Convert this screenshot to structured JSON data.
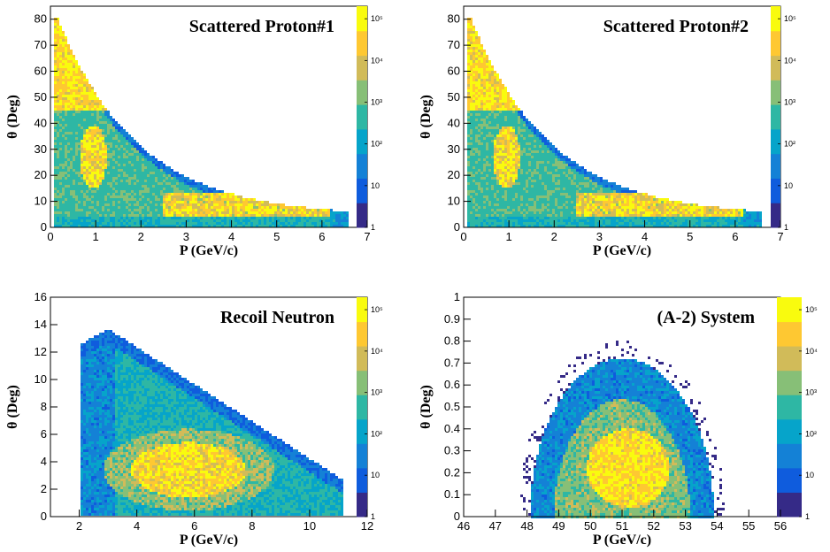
{
  "colorbar_colors": [
    "#352a87",
    "#0f5cdd",
    "#1481d6",
    "#06a4ca",
    "#2eb7a4",
    "#87bf77",
    "#d1bb59",
    "#fec832",
    "#f9fb0e"
  ],
  "chart_data": [
    {
      "type": "heatmap",
      "title": "Scattered Proton#1",
      "xlabel": "P (GeV/c)",
      "ylabel": "θ (Deg)",
      "xlim": [
        0,
        7
      ],
      "ylim": [
        0,
        85
      ],
      "xticks": [
        "0",
        "1",
        "2",
        "3",
        "4",
        "5",
        "6",
        "7"
      ],
      "yticks": [
        "0",
        "10",
        "20",
        "30",
        "40",
        "50",
        "60",
        "70",
        "80"
      ],
      "zscale": "log",
      "zlim": [
        1,
        200000
      ],
      "zticks": [
        {
          "label": "1",
          "exp": 0
        },
        {
          "label": "10",
          "exp": 1
        },
        {
          "label": "10²",
          "exp": 2
        },
        {
          "label": "10³",
          "exp": 3
        },
        {
          "label": "10⁴",
          "exp": 4
        },
        {
          "label": "10⁵",
          "exp": 5
        }
      ],
      "shape": "proton"
    },
    {
      "type": "heatmap",
      "title": "Scattered Proton#2",
      "xlabel": "P (GeV/c)",
      "ylabel": "θ (Deg)",
      "xlim": [
        0,
        7
      ],
      "ylim": [
        0,
        85
      ],
      "xticks": [
        "0",
        "1",
        "2",
        "3",
        "4",
        "5",
        "6",
        "7"
      ],
      "yticks": [
        "0",
        "10",
        "20",
        "30",
        "40",
        "50",
        "60",
        "70",
        "80"
      ],
      "zscale": "log",
      "zlim": [
        1,
        200000
      ],
      "zticks": [
        {
          "label": "1",
          "exp": 0
        },
        {
          "label": "10",
          "exp": 1
        },
        {
          "label": "10²",
          "exp": 2
        },
        {
          "label": "10³",
          "exp": 3
        },
        {
          "label": "10⁴",
          "exp": 4
        },
        {
          "label": "10⁵",
          "exp": 5
        }
      ],
      "shape": "proton"
    },
    {
      "type": "heatmap",
      "title": "Recoil Neutron",
      "xlabel": "P (GeV/c)",
      "ylabel": "θ (Deg)",
      "xlim": [
        1,
        12
      ],
      "ylim": [
        0,
        16
      ],
      "xticks": [
        "2",
        "4",
        "6",
        "8",
        "10",
        "12"
      ],
      "xtick_values": [
        2,
        4,
        6,
        8,
        10,
        12
      ],
      "yticks": [
        "0",
        "2",
        "4",
        "6",
        "8",
        "10",
        "12",
        "14",
        "16"
      ],
      "zscale": "log",
      "zlim": [
        1,
        200000
      ],
      "zticks": [
        {
          "label": "1",
          "exp": 0
        },
        {
          "label": "10",
          "exp": 1
        },
        {
          "label": "10²",
          "exp": 2
        },
        {
          "label": "10³",
          "exp": 3
        },
        {
          "label": "10⁴",
          "exp": 4
        },
        {
          "label": "10⁵",
          "exp": 5
        }
      ],
      "shape": "neutron"
    },
    {
      "type": "heatmap",
      "title": "(A-2) System",
      "xlabel": "P (GeV/c)",
      "ylabel": "θ (Deg)",
      "xlim": [
        46,
        56
      ],
      "ylim": [
        0,
        1
      ],
      "xticks": [
        "46",
        "47",
        "48",
        "49",
        "50",
        "51",
        "52",
        "53",
        "54",
        "55",
        "56"
      ],
      "yticks": [
        "0",
        "0.1",
        "0.2",
        "0.3",
        "0.4",
        "0.5",
        "0.6",
        "0.7",
        "0.8",
        "0.9",
        "1"
      ],
      "zscale": "log",
      "zlim": [
        1,
        200000
      ],
      "zticks": [
        {
          "label": "1",
          "exp": 0
        },
        {
          "label": "10",
          "exp": 1
        },
        {
          "label": "10²",
          "exp": 2
        },
        {
          "label": "10³",
          "exp": 3
        },
        {
          "label": "10⁴",
          "exp": 4
        },
        {
          "label": "10⁵",
          "exp": 5
        }
      ],
      "shape": "system"
    }
  ]
}
